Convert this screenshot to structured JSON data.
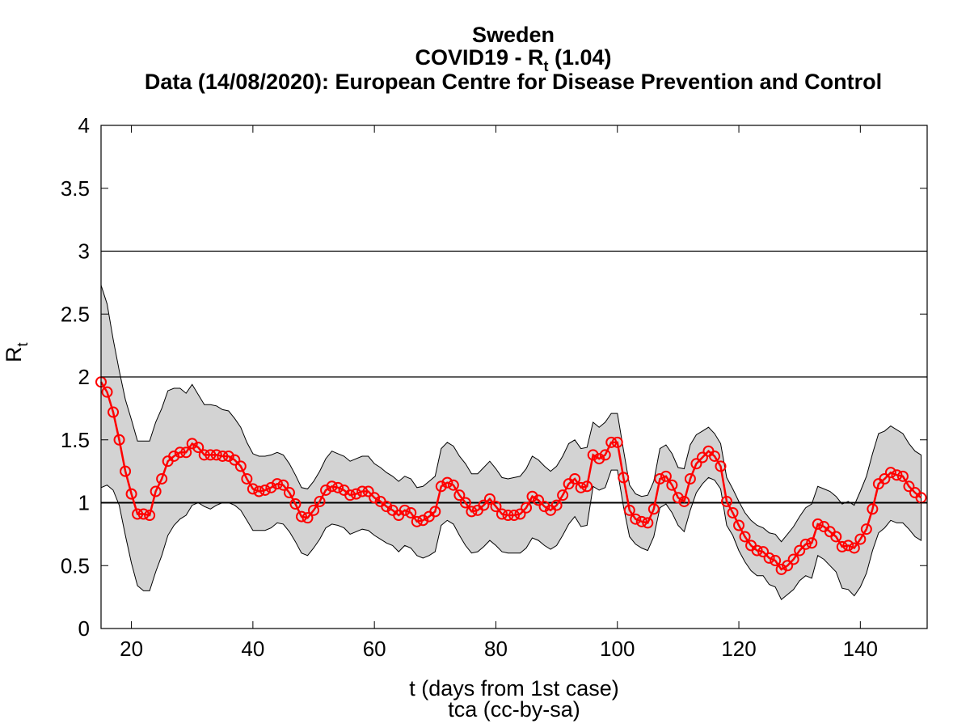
{
  "chart_data": {
    "type": "line",
    "title_lines": [
      "Sweden",
      "COVID19 - R",
      "t",
      " (1.04)",
      "Data (14/08/2020): European Centre for Disease Prevention and Control"
    ],
    "xlabel": "t (days from 1st case)",
    "xlabel2": "tca (cc-by-sa)",
    "ylabel_main": "R",
    "ylabel_sub": "t",
    "xlim": [
      15,
      151
    ],
    "ylim": [
      0,
      4
    ],
    "x_ticks": [
      20,
      40,
      60,
      80,
      100,
      120,
      140
    ],
    "y_ticks": [
      0,
      0.5,
      1,
      1.5,
      2,
      2.5,
      3,
      3.5,
      4
    ],
    "y_tick_labels": [
      "0",
      "0.5",
      "1",
      "1.5",
      "2",
      "2.5",
      "3",
      "3.5",
      "4"
    ],
    "reference_lines": [
      1,
      2,
      3
    ],
    "x_start": 15,
    "rt": [
      1.96,
      1.88,
      1.72,
      1.5,
      1.25,
      1.07,
      0.91,
      0.91,
      0.9,
      1.09,
      1.19,
      1.33,
      1.37,
      1.4,
      1.4,
      1.47,
      1.44,
      1.38,
      1.38,
      1.38,
      1.37,
      1.37,
      1.34,
      1.29,
      1.19,
      1.11,
      1.09,
      1.1,
      1.12,
      1.15,
      1.14,
      1.08,
      0.99,
      0.89,
      0.88,
      0.94,
      1.01,
      1.1,
      1.13,
      1.12,
      1.1,
      1.06,
      1.07,
      1.09,
      1.09,
      1.04,
      1.01,
      0.97,
      0.94,
      0.9,
      0.94,
      0.92,
      0.85,
      0.86,
      0.89,
      0.93,
      1.13,
      1.16,
      1.14,
      1.06,
      1.0,
      0.93,
      0.94,
      0.98,
      1.03,
      0.97,
      0.91,
      0.9,
      0.9,
      0.91,
      0.96,
      1.05,
      1.02,
      0.97,
      0.94,
      0.98,
      1.06,
      1.15,
      1.19,
      1.12,
      1.13,
      1.38,
      1.35,
      1.38,
      1.48,
      1.48,
      1.2,
      0.94,
      0.87,
      0.85,
      0.84,
      0.95,
      1.19,
      1.21,
      1.14,
      1.04,
      1.01,
      1.19,
      1.31,
      1.36,
      1.41,
      1.37,
      1.29,
      1.01,
      0.92,
      0.82,
      0.73,
      0.66,
      0.62,
      0.61,
      0.56,
      0.54,
      0.47,
      0.5,
      0.55,
      0.62,
      0.67,
      0.68,
      0.83,
      0.81,
      0.77,
      0.73,
      0.65,
      0.66,
      0.64,
      0.71,
      0.79,
      0.95,
      1.15,
      1.19,
      1.24,
      1.22,
      1.21,
      1.13,
      1.08,
      1.04
    ],
    "upper": [
      2.73,
      2.58,
      2.3,
      2.05,
      1.82,
      1.66,
      1.49,
      1.49,
      1.49,
      1.64,
      1.75,
      1.89,
      1.91,
      1.91,
      1.87,
      1.94,
      1.86,
      1.78,
      1.78,
      1.77,
      1.74,
      1.73,
      1.67,
      1.6,
      1.48,
      1.39,
      1.37,
      1.37,
      1.38,
      1.4,
      1.38,
      1.31,
      1.22,
      1.12,
      1.11,
      1.17,
      1.25,
      1.35,
      1.41,
      1.39,
      1.37,
      1.33,
      1.35,
      1.37,
      1.37,
      1.31,
      1.28,
      1.24,
      1.21,
      1.17,
      1.21,
      1.19,
      1.12,
      1.13,
      1.17,
      1.21,
      1.43,
      1.48,
      1.45,
      1.37,
      1.31,
      1.23,
      1.23,
      1.28,
      1.33,
      1.27,
      1.2,
      1.19,
      1.2,
      1.21,
      1.27,
      1.37,
      1.34,
      1.29,
      1.25,
      1.29,
      1.37,
      1.47,
      1.5,
      1.43,
      1.44,
      1.64,
      1.6,
      1.64,
      1.71,
      1.71,
      1.42,
      1.14,
      1.07,
      1.05,
      1.06,
      1.17,
      1.43,
      1.46,
      1.39,
      1.28,
      1.27,
      1.46,
      1.54,
      1.57,
      1.6,
      1.55,
      1.47,
      1.2,
      1.11,
      1.01,
      0.92,
      0.86,
      0.82,
      0.8,
      0.76,
      0.75,
      0.69,
      0.75,
      0.81,
      0.89,
      0.96,
      0.99,
      1.13,
      1.11,
      1.09,
      1.05,
      0.99,
      1.01,
      0.98,
      1.09,
      1.21,
      1.39,
      1.55,
      1.57,
      1.61,
      1.58,
      1.55,
      1.47,
      1.41,
      1.38
    ],
    "lower": [
      1.12,
      1.14,
      1.1,
      0.98,
      0.74,
      0.52,
      0.34,
      0.3,
      0.3,
      0.45,
      0.58,
      0.74,
      0.82,
      0.87,
      0.9,
      0.98,
      1.0,
      0.97,
      0.95,
      0.98,
      1.0,
      1.0,
      0.98,
      0.94,
      0.86,
      0.78,
      0.78,
      0.78,
      0.8,
      0.84,
      0.83,
      0.77,
      0.69,
      0.6,
      0.58,
      0.64,
      0.71,
      0.8,
      0.83,
      0.82,
      0.8,
      0.75,
      0.77,
      0.79,
      0.78,
      0.74,
      0.71,
      0.68,
      0.66,
      0.61,
      0.66,
      0.64,
      0.58,
      0.56,
      0.58,
      0.61,
      0.82,
      0.86,
      0.83,
      0.74,
      0.66,
      0.6,
      0.61,
      0.65,
      0.7,
      0.66,
      0.61,
      0.6,
      0.6,
      0.6,
      0.64,
      0.72,
      0.7,
      0.66,
      0.63,
      0.66,
      0.74,
      0.83,
      0.89,
      0.81,
      0.82,
      1.13,
      1.1,
      1.12,
      1.26,
      1.26,
      0.97,
      0.73,
      0.67,
      0.64,
      0.62,
      0.73,
      0.96,
      0.99,
      0.92,
      0.82,
      0.77,
      0.94,
      1.08,
      1.15,
      1.2,
      1.18,
      1.11,
      0.82,
      0.74,
      0.62,
      0.53,
      0.46,
      0.42,
      0.42,
      0.35,
      0.33,
      0.23,
      0.27,
      0.31,
      0.38,
      0.42,
      0.4,
      0.58,
      0.55,
      0.5,
      0.45,
      0.32,
      0.31,
      0.26,
      0.33,
      0.44,
      0.62,
      0.76,
      0.8,
      0.86,
      0.84,
      0.84,
      0.79,
      0.73,
      0.7
    ],
    "grid": false,
    "legend": "none",
    "colors": {
      "line": "#ff0000",
      "band": "#d3d3d3",
      "axis": "#000000"
    }
  }
}
